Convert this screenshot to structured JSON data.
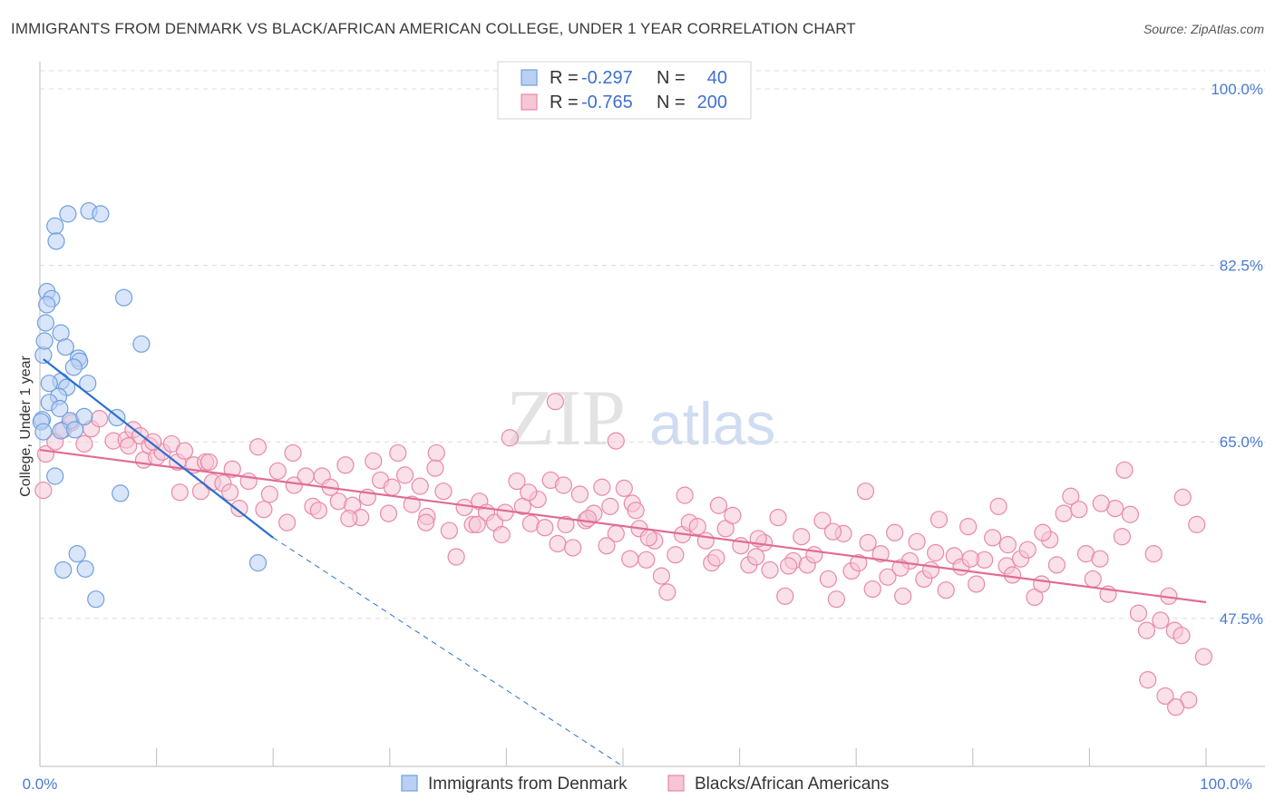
{
  "header": {
    "title": "IMMIGRANTS FROM DENMARK VS BLACK/AFRICAN AMERICAN COLLEGE, UNDER 1 YEAR CORRELATION CHART",
    "source": "Source: ZipAtlas.com"
  },
  "watermark": {
    "zip": "ZIP",
    "atlas": "atlas"
  },
  "colors": {
    "blue": "#6fa0e0",
    "blue_fill": "#b9d0f2",
    "blue_line": "#2b6fd0",
    "pink": "#e889a8",
    "pink_fill": "#f6c6d5",
    "pink_line": "#e06b96",
    "tick_text": "#4a7bd0",
    "grid": "#dcdcdc"
  },
  "legend": {
    "rows": [
      {
        "r_label": "R = ",
        "r_value": "-0.297",
        "n_label": "N = ",
        "n_value": "40",
        "color": "blue"
      },
      {
        "r_label": "R = ",
        "r_value": "-0.765",
        "n_label": "N = ",
        "n_value": "200",
        "color": "pink"
      }
    ]
  },
  "chart_data": {
    "type": "scatter",
    "title": "IMMIGRANTS FROM DENMARK VS BLACK/AFRICAN AMERICAN COLLEGE, UNDER 1 YEAR CORRELATION CHART",
    "xlabel": "",
    "ylabel": "College, Under 1 year",
    "xlim": [
      0,
      100
    ],
    "ylim": [
      31.5,
      102
    ],
    "x_tick_labels": [
      "0.0%",
      "100.0%"
    ],
    "y_ticks": [
      47.5,
      65.0,
      82.5,
      100.0
    ],
    "y_tick_labels": [
      "47.5%",
      "65.0%",
      "82.5%",
      "100.0%"
    ],
    "grid": true,
    "legend_position": "top-center",
    "series": [
      {
        "name": "Immigrants from Denmark",
        "color": "blue",
        "R": -0.297,
        "N": 40,
        "trend": {
          "x0": 0.3,
          "y0": 73.2,
          "x1": 20,
          "y1": 55.5,
          "x_dash_end": 50,
          "y_dash_end": 28.5
        },
        "points": [
          [
            2.4,
            87.6
          ],
          [
            1.3,
            86.4
          ],
          [
            4.2,
            87.9
          ],
          [
            5.2,
            87.6
          ],
          [
            1.4,
            84.9
          ],
          [
            0.6,
            79.9
          ],
          [
            1.0,
            79.2
          ],
          [
            0.6,
            78.6
          ],
          [
            0.5,
            76.8
          ],
          [
            7.2,
            79.3
          ],
          [
            1.8,
            75.8
          ],
          [
            2.2,
            74.4
          ],
          [
            3.3,
            73.3
          ],
          [
            3.4,
            73.0
          ],
          [
            8.7,
            74.7
          ],
          [
            0.3,
            73.6
          ],
          [
            0.4,
            75.0
          ],
          [
            2.9,
            72.4
          ],
          [
            1.8,
            71.0
          ],
          [
            0.8,
            70.8
          ],
          [
            4.1,
            70.8
          ],
          [
            2.3,
            70.4
          ],
          [
            1.6,
            69.5
          ],
          [
            0.8,
            68.9
          ],
          [
            1.7,
            68.3
          ],
          [
            0.2,
            67.2
          ],
          [
            2.6,
            67.1
          ],
          [
            3.8,
            67.5
          ],
          [
            6.6,
            67.4
          ],
          [
            1.8,
            66.1
          ],
          [
            3.0,
            66.2
          ],
          [
            1.3,
            61.6
          ],
          [
            0.1,
            67.0
          ],
          [
            6.9,
            59.9
          ],
          [
            3.2,
            53.9
          ],
          [
            2.0,
            52.3
          ],
          [
            3.9,
            52.4
          ],
          [
            18.7,
            53.0
          ],
          [
            4.8,
            49.4
          ],
          [
            0.3,
            66.0
          ]
        ]
      },
      {
        "name": "Blacks/African Americans",
        "color": "pink",
        "R": -0.765,
        "N": 200,
        "trend": {
          "x0": 0,
          "y0": 64.2,
          "x1": 100,
          "y1": 49.1
        },
        "points": [
          [
            0.3,
            60.2
          ],
          [
            0.5,
            63.8
          ],
          [
            1.3,
            65.0
          ],
          [
            2.0,
            66.2
          ],
          [
            2.7,
            66.9
          ],
          [
            3.8,
            64.8
          ],
          [
            4.4,
            66.3
          ],
          [
            5.1,
            67.3
          ],
          [
            6.3,
            65.1
          ],
          [
            7.4,
            65.2
          ],
          [
            7.6,
            64.6
          ],
          [
            8.0,
            66.2
          ],
          [
            8.6,
            65.6
          ],
          [
            8.9,
            63.2
          ],
          [
            9.4,
            64.6
          ],
          [
            10.0,
            63.5
          ],
          [
            10.5,
            64.0
          ],
          [
            11.3,
            64.8
          ],
          [
            11.8,
            63.0
          ],
          [
            12.4,
            64.1
          ],
          [
            12.0,
            60.0
          ],
          [
            13.2,
            62.7
          ],
          [
            13.8,
            60.1
          ],
          [
            14.2,
            63.0
          ],
          [
            14.8,
            61.0
          ],
          [
            15.7,
            60.9
          ],
          [
            16.5,
            62.3
          ],
          [
            17.1,
            58.4
          ],
          [
            17.9,
            61.1
          ],
          [
            18.7,
            64.5
          ],
          [
            19.2,
            58.3
          ],
          [
            20.4,
            62.1
          ],
          [
            21.2,
            57.0
          ],
          [
            21.8,
            60.7
          ],
          [
            22.8,
            61.6
          ],
          [
            23.4,
            58.6
          ],
          [
            24.2,
            61.6
          ],
          [
            24.9,
            60.5
          ],
          [
            25.6,
            59.1
          ],
          [
            26.2,
            62.7
          ],
          [
            26.8,
            58.7
          ],
          [
            27.5,
            57.5
          ],
          [
            28.1,
            59.5
          ],
          [
            28.6,
            63.1
          ],
          [
            29.2,
            61.2
          ],
          [
            29.9,
            57.9
          ],
          [
            30.7,
            63.9
          ],
          [
            31.3,
            61.7
          ],
          [
            31.9,
            58.8
          ],
          [
            32.6,
            60.6
          ],
          [
            33.2,
            57.6
          ],
          [
            33.9,
            62.4
          ],
          [
            34.6,
            60.1
          ],
          [
            35.1,
            56.2
          ],
          [
            35.7,
            53.6
          ],
          [
            36.4,
            58.5
          ],
          [
            37.1,
            56.8
          ],
          [
            37.7,
            59.1
          ],
          [
            38.3,
            58.0
          ],
          [
            39.0,
            57.0
          ],
          [
            39.6,
            55.8
          ],
          [
            40.3,
            65.4
          ],
          [
            40.9,
            61.1
          ],
          [
            41.4,
            58.6
          ],
          [
            42.1,
            56.9
          ],
          [
            42.7,
            59.3
          ],
          [
            43.3,
            56.5
          ],
          [
            43.8,
            61.2
          ],
          [
            44.4,
            54.9
          ],
          [
            45.1,
            56.8
          ],
          [
            45.7,
            54.5
          ],
          [
            46.3,
            59.8
          ],
          [
            46.8,
            57.2
          ],
          [
            47.5,
            57.9
          ],
          [
            48.2,
            60.5
          ],
          [
            48.9,
            58.6
          ],
          [
            49.4,
            55.9
          ],
          [
            50.1,
            60.4
          ],
          [
            50.8,
            58.9
          ],
          [
            51.4,
            56.4
          ],
          [
            52.0,
            53.3
          ],
          [
            52.7,
            55.2
          ],
          [
            53.3,
            51.7
          ],
          [
            53.8,
            50.1
          ],
          [
            54.5,
            53.8
          ],
          [
            55.1,
            55.8
          ],
          [
            55.7,
            57.0
          ],
          [
            56.4,
            56.6
          ],
          [
            57.1,
            55.2
          ],
          [
            57.6,
            53.0
          ],
          [
            58.2,
            58.7
          ],
          [
            58.8,
            56.4
          ],
          [
            59.4,
            57.7
          ],
          [
            60.1,
            54.7
          ],
          [
            60.8,
            52.8
          ],
          [
            61.4,
            53.6
          ],
          [
            62.1,
            55.0
          ],
          [
            62.6,
            52.3
          ],
          [
            63.3,
            57.5
          ],
          [
            63.9,
            49.7
          ],
          [
            64.6,
            53.2
          ],
          [
            65.3,
            55.6
          ],
          [
            65.8,
            52.8
          ],
          [
            66.4,
            53.8
          ],
          [
            67.1,
            57.2
          ],
          [
            67.6,
            51.4
          ],
          [
            68.3,
            49.4
          ],
          [
            68.9,
            55.9
          ],
          [
            69.6,
            52.2
          ],
          [
            70.2,
            53.0
          ],
          [
            70.8,
            60.1
          ],
          [
            71.4,
            50.4
          ],
          [
            72.1,
            53.9
          ],
          [
            72.7,
            51.6
          ],
          [
            73.3,
            56.0
          ],
          [
            74.0,
            49.7
          ],
          [
            74.6,
            53.2
          ],
          [
            75.2,
            55.1
          ],
          [
            75.8,
            51.4
          ],
          [
            76.4,
            52.3
          ],
          [
            77.1,
            57.3
          ],
          [
            77.7,
            50.3
          ],
          [
            78.4,
            53.7
          ],
          [
            79.0,
            52.6
          ],
          [
            79.6,
            56.6
          ],
          [
            80.3,
            50.9
          ],
          [
            81.0,
            53.3
          ],
          [
            81.7,
            55.5
          ],
          [
            82.2,
            58.6
          ],
          [
            82.9,
            52.7
          ],
          [
            83.4,
            51.8
          ],
          [
            84.1,
            53.4
          ],
          [
            84.7,
            54.3
          ],
          [
            85.3,
            49.6
          ],
          [
            85.9,
            50.9
          ],
          [
            86.6,
            55.3
          ],
          [
            87.2,
            52.8
          ],
          [
            87.8,
            57.9
          ],
          [
            88.4,
            59.6
          ],
          [
            89.1,
            58.3
          ],
          [
            89.7,
            53.9
          ],
          [
            90.3,
            51.4
          ],
          [
            90.9,
            53.4
          ],
          [
            91.6,
            49.9
          ],
          [
            92.2,
            58.4
          ],
          [
            92.8,
            55.6
          ],
          [
            93.5,
            57.8
          ],
          [
            94.2,
            48.0
          ],
          [
            94.9,
            46.3
          ],
          [
            95.5,
            53.9
          ],
          [
            96.1,
            47.3
          ],
          [
            96.8,
            49.7
          ],
          [
            97.3,
            46.3
          ],
          [
            97.9,
            45.8
          ],
          [
            98.5,
            39.4
          ],
          [
            99.2,
            56.8
          ],
          [
            99.8,
            43.7
          ],
          [
            95.0,
            41.4
          ],
          [
            96.5,
            39.8
          ],
          [
            97.4,
            38.7
          ],
          [
            98.0,
            59.5
          ],
          [
            93.0,
            62.2
          ],
          [
            91.0,
            58.9
          ],
          [
            86.0,
            56.0
          ],
          [
            83.0,
            54.8
          ],
          [
            79.8,
            53.4
          ],
          [
            76.8,
            54.0
          ],
          [
            73.8,
            52.5
          ],
          [
            71.0,
            55.0
          ],
          [
            68.0,
            56.1
          ],
          [
            64.2,
            52.7
          ],
          [
            61.6,
            55.4
          ],
          [
            58.0,
            53.5
          ],
          [
            55.3,
            59.7
          ],
          [
            52.2,
            55.5
          ],
          [
            50.6,
            53.4
          ],
          [
            48.6,
            54.7
          ],
          [
            47.0,
            57.4
          ],
          [
            44.9,
            60.7
          ],
          [
            41.9,
            60.0
          ],
          [
            39.9,
            58.0
          ],
          [
            37.5,
            56.8
          ],
          [
            34.0,
            63.9
          ],
          [
            33.1,
            57.0
          ],
          [
            30.2,
            60.5
          ],
          [
            26.5,
            57.4
          ],
          [
            23.9,
            58.2
          ],
          [
            21.7,
            63.9
          ],
          [
            19.7,
            59.8
          ],
          [
            16.3,
            60.0
          ],
          [
            14.5,
            63.0
          ],
          [
            9.7,
            65.0
          ],
          [
            49.4,
            65.1
          ],
          [
            44.2,
            69.0
          ],
          [
            51.1,
            58.2
          ]
        ]
      }
    ]
  },
  "bottom_legend": {
    "items": [
      {
        "label": "Immigrants from Denmark",
        "color": "blue"
      },
      {
        "label": "Blacks/African Americans",
        "color": "pink"
      }
    ]
  }
}
